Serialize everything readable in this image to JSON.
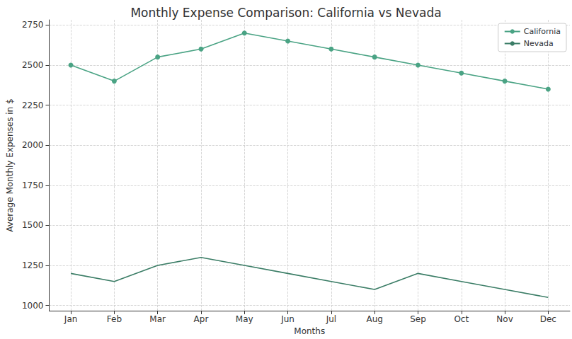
{
  "chart_data": {
    "type": "line",
    "title": "Monthly Expense Comparison: California vs Nevada",
    "x_label": "Months",
    "y_label": "Average Monthly Expenses in $",
    "categories": [
      "Jan",
      "Feb",
      "Mar",
      "Apr",
      "May",
      "Jun",
      "Jul",
      "Aug",
      "Sep",
      "Oct",
      "Nov",
      "Dec"
    ],
    "series": [
      {
        "name": "California",
        "color": "#4aa384",
        "marker": "o",
        "line_style": "solid",
        "values": [
          2500,
          2400,
          2550,
          2600,
          2700,
          2650,
          2600,
          2550,
          2500,
          2450,
          2400,
          2350
        ]
      },
      {
        "name": "Nevada",
        "color": "#3b7d66",
        "marker": "none",
        "line_style": "solid",
        "values": [
          1200,
          1150,
          1250,
          1300,
          1250,
          1200,
          1150,
          1100,
          1200,
          1150,
          1100,
          1050
        ]
      }
    ],
    "ylim": [
      967.5,
      2782.5
    ],
    "yticks": [
      1000,
      1250,
      1500,
      1750,
      2000,
      2250,
      2500,
      2750
    ],
    "grid": true,
    "legend": "upper right"
  }
}
